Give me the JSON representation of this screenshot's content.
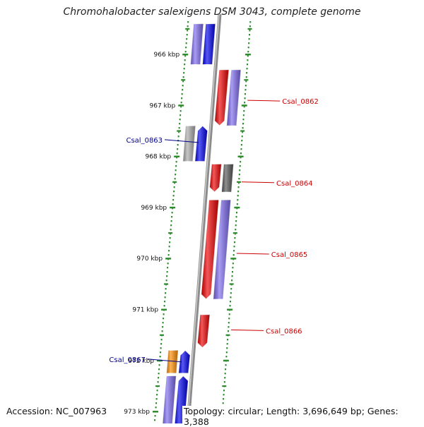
{
  "title": "Chromohalobacter salexigens DSM 3043, complete genome",
  "accession_text": "Accession: NC_007963",
  "summary_text": "Topology: circular; Length: 3,696,649 bp; Genes: 3,388",
  "colors": {
    "backbone": "#8c8c8c",
    "tick": "#2e8b2e",
    "red": "#ee0000",
    "blue": "#0000ee",
    "lavender": "#7b68ee",
    "grey_light": "#aaaaaa",
    "grey_dark": "#555555",
    "orange": "#ff8c00",
    "forward_label": "#cc0000",
    "reverse_label": "#00008b"
  },
  "ticks": [
    {
      "label": "966 kbp",
      "kbp": 966
    },
    {
      "label": "967 kbp",
      "kbp": 967
    },
    {
      "label": "968 kbp",
      "kbp": 968
    },
    {
      "label": "969 kbp",
      "kbp": 969
    },
    {
      "label": "970 kbp",
      "kbp": 970
    },
    {
      "label": "971 kbp",
      "kbp": 971
    },
    {
      "label": "972 kbp",
      "kbp": 972
    },
    {
      "label": "973 kbp",
      "kbp": 973
    }
  ],
  "features": [
    {
      "strand": "reverse",
      "lane": 2,
      "start": 965.4,
      "end": 966.2,
      "color": "lavender",
      "shape": "box"
    },
    {
      "strand": "reverse",
      "lane": 1,
      "start": 965.4,
      "end": 966.2,
      "color": "blue",
      "shape": "box"
    },
    {
      "strand": "forward",
      "lane": 1,
      "start": 966.3,
      "end": 967.4,
      "color": "red",
      "shape": "arrow-down"
    },
    {
      "strand": "forward",
      "lane": 2,
      "start": 966.3,
      "end": 967.4,
      "color": "lavender",
      "shape": "box"
    },
    {
      "strand": "reverse",
      "lane": 2,
      "start": 967.4,
      "end": 968.1,
      "color": "grey_light",
      "shape": "box"
    },
    {
      "strand": "reverse",
      "lane": 1,
      "start": 967.4,
      "end": 968.1,
      "color": "blue",
      "shape": "arrow-up"
    },
    {
      "strand": "forward",
      "lane": 1,
      "start": 968.15,
      "end": 968.7,
      "color": "red",
      "shape": "arrow-down"
    },
    {
      "strand": "forward",
      "lane": 2,
      "start": 968.15,
      "end": 968.7,
      "color": "grey_dark",
      "shape": "box"
    },
    {
      "strand": "forward",
      "lane": 1,
      "start": 968.85,
      "end": 970.8,
      "color": "red",
      "shape": "arrow-down"
    },
    {
      "strand": "forward",
      "lane": 2,
      "start": 968.85,
      "end": 970.8,
      "color": "lavender",
      "shape": "box"
    },
    {
      "strand": "forward",
      "lane": 1,
      "start": 971.1,
      "end": 971.75,
      "color": "red",
      "shape": "arrow-down"
    },
    {
      "strand": "reverse",
      "lane": 2,
      "start": 971.8,
      "end": 972.25,
      "color": "orange",
      "shape": "box"
    },
    {
      "strand": "reverse",
      "lane": 1,
      "start": 971.8,
      "end": 972.25,
      "color": "blue",
      "shape": "arrow-up"
    },
    {
      "strand": "reverse",
      "lane": 2,
      "start": 972.3,
      "end": 973.4,
      "color": "lavender",
      "shape": "box"
    },
    {
      "strand": "reverse",
      "lane": 1,
      "start": 972.3,
      "end": 973.4,
      "color": "blue",
      "shape": "arrow-up"
    }
  ],
  "labels": [
    {
      "text": "Csal_0862",
      "strand": "forward",
      "kbp": 966.9
    },
    {
      "text": "Csal_0863",
      "strand": "reverse",
      "kbp": 967.7
    },
    {
      "text": "Csal_0864",
      "strand": "forward",
      "kbp": 968.5
    },
    {
      "text": "Csal_0865",
      "strand": "forward",
      "kbp": 969.9
    },
    {
      "text": "Csal_0866",
      "strand": "forward",
      "kbp": 971.4
    },
    {
      "text": "Csal_0867",
      "strand": "reverse",
      "kbp": 972.0
    }
  ]
}
